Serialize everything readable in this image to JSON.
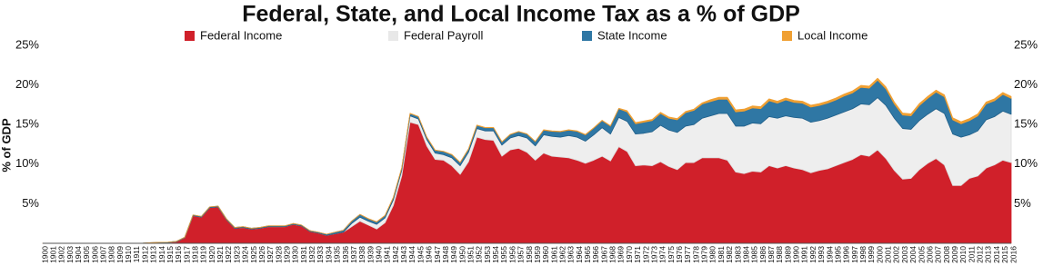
{
  "chart_data": {
    "type": "stacked_area",
    "title": "Federal, State, and Local Income Tax as a % of GDP",
    "y_label": "% of GDP",
    "legend": "top",
    "grid": false,
    "x": [
      1900,
      1901,
      1902,
      1903,
      1904,
      1905,
      1906,
      1907,
      1908,
      1909,
      1910,
      1911,
      1912,
      1913,
      1914,
      1915,
      1916,
      1917,
      1918,
      1919,
      1920,
      1921,
      1922,
      1923,
      1924,
      1925,
      1926,
      1927,
      1928,
      1929,
      1930,
      1931,
      1932,
      1933,
      1934,
      1935,
      1936,
      1937,
      1938,
      1939,
      1940,
      1941,
      1942,
      1943,
      1944,
      1945,
      1946,
      1947,
      1948,
      1949,
      1950,
      1951,
      1952,
      1953,
      1954,
      1955,
      1956,
      1957,
      1958,
      1959,
      1960,
      1961,
      1962,
      1963,
      1964,
      1965,
      1966,
      1967,
      1968,
      1969,
      1970,
      1971,
      1972,
      1973,
      1974,
      1975,
      1976,
      1977,
      1978,
      1979,
      1980,
      1981,
      1982,
      1983,
      1984,
      1985,
      1986,
      1987,
      1988,
      1989,
      1990,
      1991,
      1992,
      1993,
      1994,
      1995,
      1996,
      1997,
      1998,
      1999,
      2000,
      2001,
      2002,
      2003,
      2004,
      2005,
      2006,
      2007,
      2008,
      2009,
      2010,
      2011,
      2012,
      2013,
      2014,
      2015,
      2016
    ],
    "xlim": [
      1900,
      2016
    ],
    "ylim": [
      0,
      25
    ],
    "yticks": [
      {
        "value": 5,
        "label": "5%"
      },
      {
        "value": 10,
        "label": "10%"
      },
      {
        "value": 15,
        "label": "15%"
      },
      {
        "value": 20,
        "label": "20%"
      },
      {
        "value": 25,
        "label": "25%"
      }
    ],
    "series": [
      {
        "name": "Federal Income",
        "color": "#d0202a",
        "values": [
          0,
          0,
          0,
          0,
          0,
          0,
          0,
          0,
          0,
          0,
          0,
          0,
          0,
          0.05,
          0.1,
          0.1,
          0.2,
          0.7,
          3.5,
          3.3,
          4.5,
          4.6,
          3.0,
          1.9,
          2.0,
          1.8,
          1.9,
          2.1,
          2.1,
          2.1,
          2.4,
          2.2,
          1.5,
          1.3,
          1.0,
          1.2,
          1.4,
          2.1,
          2.8,
          2.3,
          1.8,
          2.6,
          4.8,
          8.5,
          15.3,
          15.0,
          12.3,
          10.6,
          10.5,
          9.8,
          8.7,
          10.3,
          13.4,
          13.1,
          13.0,
          11.0,
          11.8,
          12.0,
          11.5,
          10.5,
          11.4,
          11.0,
          10.9,
          10.8,
          10.5,
          10.1,
          10.5,
          11.0,
          10.4,
          12.2,
          11.6,
          9.8,
          9.9,
          9.8,
          10.3,
          9.7,
          9.3,
          10.2,
          10.2,
          10.8,
          10.8,
          10.8,
          10.5,
          9.0,
          8.8,
          9.1,
          9.0,
          9.8,
          9.5,
          9.8,
          9.5,
          9.3,
          8.9,
          9.2,
          9.4,
          9.8,
          10.2,
          10.6,
          11.2,
          11.0,
          11.8,
          10.7,
          9.2,
          8.1,
          8.2,
          9.3,
          10.1,
          10.7,
          9.9,
          7.3,
          7.3,
          8.2,
          8.5,
          9.5,
          9.9,
          10.5,
          10.2
        ]
      },
      {
        "name": "Federal Payroll",
        "color": "#eeeeee",
        "values": [
          0,
          0,
          0,
          0,
          0,
          0,
          0,
          0,
          0,
          0,
          0,
          0,
          0,
          0,
          0,
          0,
          0,
          0,
          0,
          0,
          0,
          0,
          0,
          0,
          0,
          0,
          0,
          0,
          0,
          0,
          0,
          0,
          0,
          0,
          0,
          0,
          0,
          0.4,
          0.5,
          0.5,
          0.6,
          0.6,
          0.7,
          0.7,
          0.8,
          0.7,
          0.8,
          0.8,
          0.7,
          1.0,
          1.1,
          1.2,
          1.1,
          1.1,
          1.2,
          1.4,
          1.5,
          1.6,
          1.8,
          1.8,
          2.3,
          2.5,
          2.5,
          2.8,
          2.9,
          2.8,
          3.2,
          3.6,
          3.4,
          3.7,
          3.8,
          4.0,
          4.0,
          4.3,
          4.6,
          4.6,
          4.7,
          4.6,
          4.8,
          5.0,
          5.3,
          5.6,
          5.9,
          5.8,
          6.0,
          6.1,
          6.1,
          6.2,
          6.3,
          6.3,
          6.4,
          6.5,
          6.4,
          6.3,
          6.4,
          6.4,
          6.4,
          6.4,
          6.4,
          6.5,
          6.6,
          6.7,
          6.6,
          6.4,
          6.2,
          6.2,
          6.2,
          6.3,
          6.5,
          6.5,
          6.1,
          5.5,
          5.7,
          6.1,
          6.1,
          6.2,
          6.1
        ]
      },
      {
        "name": "State Income",
        "color": "#2f77a4",
        "values": [
          0,
          0,
          0,
          0,
          0,
          0,
          0,
          0,
          0,
          0,
          0,
          0,
          0.02,
          0.03,
          0.03,
          0.04,
          0.05,
          0.06,
          0.08,
          0.1,
          0.1,
          0.1,
          0.1,
          0.1,
          0.1,
          0.1,
          0.1,
          0.1,
          0.1,
          0.1,
          0.1,
          0.1,
          0.1,
          0.1,
          0.15,
          0.2,
          0.25,
          0.3,
          0.35,
          0.3,
          0.3,
          0.3,
          0.3,
          0.3,
          0.3,
          0.3,
          0.3,
          0.35,
          0.4,
          0.4,
          0.4,
          0.4,
          0.4,
          0.4,
          0.4,
          0.4,
          0.45,
          0.5,
          0.5,
          0.55,
          0.6,
          0.65,
          0.7,
          0.7,
          0.75,
          0.8,
          0.85,
          0.9,
          1.0,
          1.1,
          1.2,
          1.3,
          1.4,
          1.4,
          1.5,
          1.5,
          1.6,
          1.7,
          1.8,
          1.8,
          1.8,
          1.8,
          1.8,
          1.8,
          1.9,
          1.9,
          1.9,
          2.0,
          1.9,
          2.0,
          1.9,
          1.9,
          1.9,
          1.9,
          1.9,
          1.9,
          2.0,
          2.0,
          2.1,
          2.1,
          2.2,
          2.1,
          1.8,
          1.7,
          1.7,
          1.9,
          2.0,
          2.1,
          2.1,
          1.8,
          1.7,
          1.8,
          1.9,
          2.0,
          2.0,
          2.1,
          2.0
        ]
      },
      {
        "name": "Local Income",
        "color": "#f0a033",
        "values": [
          0,
          0,
          0,
          0,
          0,
          0,
          0,
          0,
          0,
          0,
          0,
          0,
          0,
          0,
          0,
          0,
          0,
          0,
          0,
          0,
          0,
          0,
          0,
          0,
          0,
          0,
          0,
          0,
          0,
          0,
          0,
          0,
          0,
          0,
          0,
          0,
          0,
          0,
          0,
          0.03,
          0.03,
          0.03,
          0.03,
          0.03,
          0.03,
          0.03,
          0.03,
          0.03,
          0.03,
          0.03,
          0.03,
          0.03,
          0.03,
          0.03,
          0.03,
          0.03,
          0.03,
          0.03,
          0.03,
          0.03,
          0.05,
          0.05,
          0.05,
          0.05,
          0.05,
          0.05,
          0.05,
          0.05,
          0.05,
          0.05,
          0.15,
          0.15,
          0.15,
          0.15,
          0.15,
          0.15,
          0.15,
          0.15,
          0.15,
          0.15,
          0.25,
          0.25,
          0.25,
          0.25,
          0.25,
          0.25,
          0.25,
          0.25,
          0.25,
          0.25,
          0.25,
          0.25,
          0.25,
          0.25,
          0.25,
          0.25,
          0.25,
          0.25,
          0.25,
          0.25,
          0.25,
          0.25,
          0.25,
          0.25,
          0.25,
          0.25,
          0.25,
          0.25,
          0.25,
          0.25,
          0.25,
          0.25,
          0.25,
          0.25,
          0.25,
          0.25,
          0.25
        ]
      }
    ]
  }
}
